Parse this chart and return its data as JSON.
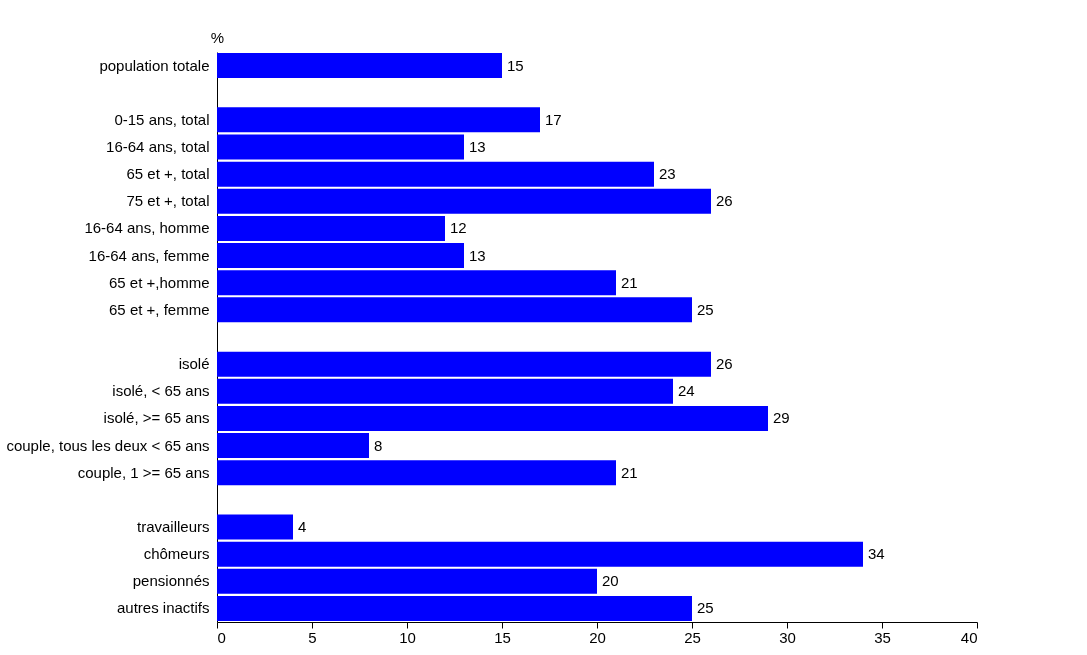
{
  "chart_data": {
    "type": "bar",
    "orientation": "horizontal",
    "xlabel": "%",
    "categories": [
      "population totale",
      null,
      "0-15 ans, total",
      "16-64 ans, total",
      "65 et +, total",
      "75 et +, total",
      "16-64 ans, homme",
      "16-64 ans, femme",
      "65 et +,homme",
      "65 et +, femme",
      null,
      "isolé",
      "isolé, < 65 ans",
      "isolé, >= 65 ans",
      "couple, tous les deux < 65 ans",
      "couple, 1 >= 65 ans",
      null,
      "travailleurs",
      "chômeurs",
      "pensionnés",
      "autres inactifs"
    ],
    "values": [
      15,
      null,
      17,
      13,
      23,
      26,
      12,
      13,
      21,
      25,
      null,
      26,
      24,
      29,
      8,
      21,
      null,
      4,
      34,
      20,
      25
    ],
    "color": "#0000ff",
    "xlim": [
      0,
      40
    ],
    "xticks": [
      0,
      5,
      10,
      15,
      20,
      25,
      30,
      35,
      40
    ],
    "data_labels": true,
    "grid": false
  }
}
